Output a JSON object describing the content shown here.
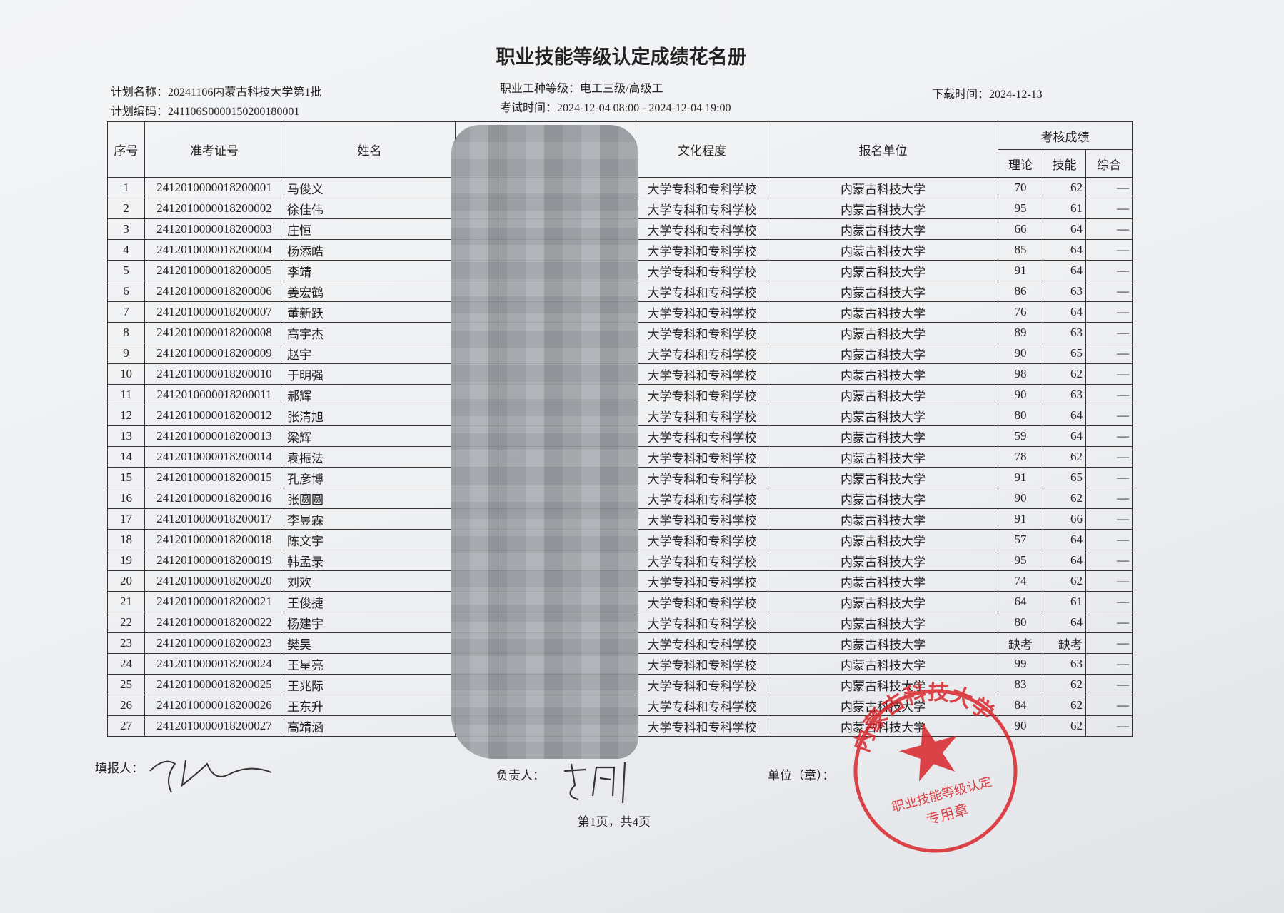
{
  "header": {
    "title": "职业技能等级认定成绩花名册",
    "plan_name_label": "计划名称：",
    "plan_name": "20241106内蒙古科技大学第1批",
    "plan_code_label": "计划编码：",
    "plan_code": "241106S0000150200180001",
    "job_label": "职业工种等级：",
    "job": "电工三级/高级工",
    "exam_time_label": "考试时间：",
    "exam_time": "2024-12-04 08:00 - 2024-12-04 19:00",
    "download_label": "下载时间：",
    "download": "2024-12-13"
  },
  "table": {
    "headers": {
      "no": "序号",
      "exam_id": "准考证号",
      "name": "姓名",
      "education": "文化程度",
      "unit": "报名单位",
      "score_group": "考核成绩",
      "theory": "理论",
      "skill": "技能",
      "composite": "综合"
    },
    "rows": [
      [
        1,
        "2412010000018200001",
        "马俊义",
        "大学专科和专科学校",
        "内蒙古科技大学",
        70,
        62,
        "—"
      ],
      [
        2,
        "2412010000018200002",
        "徐佳伟",
        "大学专科和专科学校",
        "内蒙古科技大学",
        95,
        61,
        "—"
      ],
      [
        3,
        "2412010000018200003",
        "庄恒",
        "大学专科和专科学校",
        "内蒙古科技大学",
        66,
        64,
        "—"
      ],
      [
        4,
        "2412010000018200004",
        "杨添皓",
        "大学专科和专科学校",
        "内蒙古科技大学",
        85,
        64,
        "—"
      ],
      [
        5,
        "2412010000018200005",
        "李靖",
        "大学专科和专科学校",
        "内蒙古科技大学",
        91,
        64,
        "—"
      ],
      [
        6,
        "2412010000018200006",
        "姜宏鹤",
        "大学专科和专科学校",
        "内蒙古科技大学",
        86,
        63,
        "—"
      ],
      [
        7,
        "2412010000018200007",
        "董新跃",
        "大学专科和专科学校",
        "内蒙古科技大学",
        76,
        64,
        "—"
      ],
      [
        8,
        "2412010000018200008",
        "高宇杰",
        "大学专科和专科学校",
        "内蒙古科技大学",
        89,
        63,
        "—"
      ],
      [
        9,
        "2412010000018200009",
        "赵宇",
        "大学专科和专科学校",
        "内蒙古科技大学",
        90,
        65,
        "—"
      ],
      [
        10,
        "2412010000018200010",
        "于明强",
        "大学专科和专科学校",
        "内蒙古科技大学",
        98,
        62,
        "—"
      ],
      [
        11,
        "2412010000018200011",
        "郝辉",
        "大学专科和专科学校",
        "内蒙古科技大学",
        90,
        63,
        "—"
      ],
      [
        12,
        "2412010000018200012",
        "张清旭",
        "大学专科和专科学校",
        "内蒙古科技大学",
        80,
        64,
        "—"
      ],
      [
        13,
        "2412010000018200013",
        "梁辉",
        "大学专科和专科学校",
        "内蒙古科技大学",
        59,
        64,
        "—"
      ],
      [
        14,
        "2412010000018200014",
        "袁振法",
        "大学专科和专科学校",
        "内蒙古科技大学",
        78,
        62,
        "—"
      ],
      [
        15,
        "2412010000018200015",
        "孔彦博",
        "大学专科和专科学校",
        "内蒙古科技大学",
        91,
        65,
        "—"
      ],
      [
        16,
        "2412010000018200016",
        "张圆圆",
        "大学专科和专科学校",
        "内蒙古科技大学",
        90,
        62,
        "—"
      ],
      [
        17,
        "2412010000018200017",
        "李昱霖",
        "大学专科和专科学校",
        "内蒙古科技大学",
        91,
        66,
        "—"
      ],
      [
        18,
        "2412010000018200018",
        "陈文宇",
        "大学专科和专科学校",
        "内蒙古科技大学",
        57,
        64,
        "—"
      ],
      [
        19,
        "2412010000018200019",
        "韩孟录",
        "大学专科和专科学校",
        "内蒙古科技大学",
        95,
        64,
        "—"
      ],
      [
        20,
        "2412010000018200020",
        "刘欢",
        "大学专科和专科学校",
        "内蒙古科技大学",
        74,
        62,
        "—"
      ],
      [
        21,
        "2412010000018200021",
        "王俊捷",
        "大学专科和专科学校",
        "内蒙古科技大学",
        64,
        61,
        "—"
      ],
      [
        22,
        "2412010000018200022",
        "杨建宇",
        "大学专科和专科学校",
        "内蒙古科技大学",
        80,
        64,
        "—"
      ],
      [
        23,
        "2412010000018200023",
        "樊昊",
        "大学专科和专科学校",
        "内蒙古科技大学",
        "缺考",
        "缺考",
        "—"
      ],
      [
        24,
        "2412010000018200024",
        "王星亮",
        "大学专科和专科学校",
        "内蒙古科技大学",
        99,
        63,
        "—"
      ],
      [
        25,
        "2412010000018200025",
        "王兆际",
        "大学专科和专科学校",
        "内蒙古科技大学",
        83,
        62,
        "—"
      ],
      [
        26,
        "2412010000018200026",
        "王东升",
        "大学专科和专科学校",
        "内蒙古科技大学",
        84,
        62,
        "—"
      ],
      [
        27,
        "2412010000018200027",
        "高靖涵",
        "大学专科和专科学校",
        "内蒙古科技大学",
        90,
        62,
        "—"
      ]
    ]
  },
  "footer": {
    "filler": "填报人：",
    "leader": "负责人：",
    "unit": "单位（章）：",
    "page": "第1页，共4页"
  },
  "stamp": {
    "name": "内蒙古科技大学",
    "purpose": "职业技能等级认定",
    "seal": "专用章"
  }
}
